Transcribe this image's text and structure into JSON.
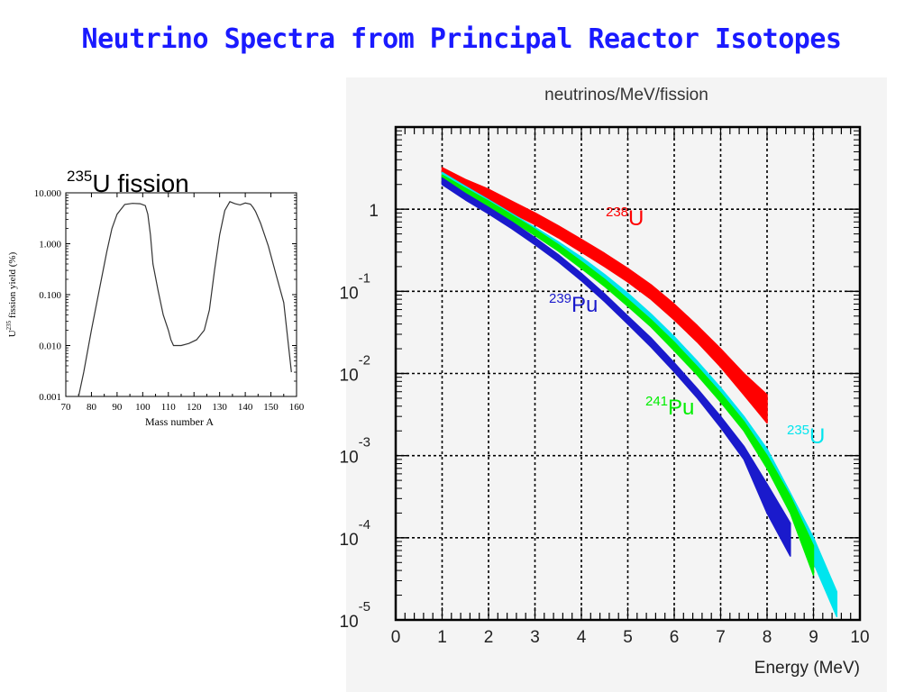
{
  "slide": {
    "title": "Neutrino Spectra from Principal Reactor Isotopes"
  },
  "chart_data": [
    {
      "type": "line",
      "title_prefix": "235",
      "title": "U fission",
      "xlabel": "Mass number A",
      "ylabel_prefix": "U",
      "ylabel_sup": "235",
      "ylabel": "fission yield (%)",
      "xlim": [
        70,
        160
      ],
      "ylim": [
        0.001,
        10
      ],
      "yscale": "log",
      "x_ticks": [
        "70",
        "80",
        "90",
        "100",
        "110",
        "120",
        "130",
        "140",
        "150",
        "160"
      ],
      "y_ticks": [
        "0.001",
        "0.010",
        "0.100",
        "1.000",
        "10.000"
      ],
      "series": [
        {
          "x": [
            75,
            77,
            80,
            83,
            86,
            88,
            90,
            93,
            96,
            99,
            101,
            102,
            103,
            104,
            106,
            108,
            110,
            111,
            112,
            115,
            118,
            121,
            124,
            126,
            128,
            130,
            132,
            134,
            136,
            138,
            140,
            142,
            143,
            144,
            146,
            149,
            152,
            155,
            158
          ],
          "y": [
            0.001,
            0.003,
            0.02,
            0.12,
            0.7,
            2.0,
            3.8,
            5.9,
            6.2,
            6.1,
            5.6,
            3.8,
            1.5,
            0.4,
            0.12,
            0.04,
            0.02,
            0.013,
            0.01,
            0.01,
            0.011,
            0.013,
            0.02,
            0.05,
            0.3,
            1.5,
            4.5,
            6.7,
            6.1,
            5.8,
            6.3,
            6.0,
            5.2,
            4.3,
            2.5,
            0.9,
            0.25,
            0.07,
            0.003
          ]
        }
      ]
    },
    {
      "type": "area",
      "title": "neutrinos/MeV/fission",
      "xlabel": "Energy (MeV)",
      "xlim": [
        0,
        10
      ],
      "ylim": [
        1e-05,
        10
      ],
      "yscale": "log",
      "grid": true,
      "x_ticks": [
        "0",
        "1",
        "2",
        "3",
        "4",
        "5",
        "6",
        "7",
        "8",
        "9",
        "10"
      ],
      "y_ticks": [
        {
          "base": "10",
          "exp": "-5"
        },
        {
          "base": "10",
          "exp": "-4"
        },
        {
          "base": "10",
          "exp": "-3"
        },
        {
          "base": "10",
          "exp": "-2"
        },
        {
          "base": "10",
          "exp": "-1"
        },
        {
          "base": "1",
          "exp": ""
        }
      ],
      "series": [
        {
          "name": "238U",
          "label_sup": "238",
          "label": "U",
          "color": "#ff0000",
          "x": [
            1,
            1.5,
            2,
            2.5,
            3,
            3.5,
            4,
            4.5,
            5,
            5.5,
            6,
            6.5,
            7,
            7.5,
            8
          ],
          "lower": [
            2.3,
            1.7,
            1.25,
            0.9,
            0.65,
            0.45,
            0.3,
            0.2,
            0.13,
            0.08,
            0.045,
            0.024,
            0.012,
            0.0055,
            0.0025
          ],
          "upper": [
            3.2,
            2.3,
            1.75,
            1.25,
            0.9,
            0.63,
            0.43,
            0.29,
            0.19,
            0.12,
            0.07,
            0.038,
            0.02,
            0.01,
            0.0055
          ]
        },
        {
          "name": "235U",
          "label_sup": "235",
          "label": "U",
          "color": "#00e5ee",
          "x": [
            1,
            1.5,
            2,
            2.5,
            3,
            3.5,
            4,
            4.5,
            5,
            5.5,
            6,
            6.5,
            7,
            7.5,
            8,
            8.5,
            9,
            9.5
          ],
          "lower": [
            2.4,
            1.6,
            1.1,
            0.75,
            0.52,
            0.34,
            0.22,
            0.13,
            0.076,
            0.042,
            0.022,
            0.011,
            0.005,
            0.0022,
            0.0008,
            0.00023,
            5e-05,
            1.1e-05
          ],
          "upper": [
            2.8,
            1.9,
            1.3,
            0.88,
            0.6,
            0.4,
            0.26,
            0.16,
            0.095,
            0.053,
            0.028,
            0.014,
            0.0067,
            0.003,
            0.0012,
            0.00035,
            0.0001,
            2.2e-05
          ]
        },
        {
          "name": "241Pu",
          "label_sup": "241",
          "label": "Pu",
          "color": "#00ee00",
          "x": [
            1,
            1.5,
            2,
            2.5,
            3,
            3.5,
            4,
            4.5,
            5,
            5.5,
            6,
            6.5,
            7,
            7.5,
            8,
            8.5,
            9
          ],
          "lower": [
            2.2,
            1.5,
            1.05,
            0.72,
            0.48,
            0.31,
            0.19,
            0.115,
            0.066,
            0.037,
            0.019,
            0.0095,
            0.0045,
            0.002,
            0.0007,
            0.0002,
            3.5e-05
          ],
          "upper": [
            2.6,
            1.8,
            1.25,
            0.85,
            0.57,
            0.37,
            0.23,
            0.14,
            0.08,
            0.045,
            0.024,
            0.012,
            0.0058,
            0.0026,
            0.001,
            0.00032,
            8e-05
          ]
        },
        {
          "name": "239Pu",
          "label_sup": "239",
          "label": "Pu",
          "color": "#1a1acc",
          "x": [
            1,
            1.5,
            2,
            2.5,
            3,
            3.5,
            4,
            4.5,
            5,
            5.5,
            6,
            6.5,
            7,
            7.5,
            8,
            8.5
          ],
          "lower": [
            2.0,
            1.3,
            0.88,
            0.58,
            0.37,
            0.23,
            0.135,
            0.075,
            0.04,
            0.021,
            0.0105,
            0.005,
            0.0022,
            0.0009,
            0.0002,
            6e-05
          ],
          "upper": [
            2.4,
            1.55,
            1.05,
            0.7,
            0.45,
            0.28,
            0.165,
            0.093,
            0.05,
            0.027,
            0.0135,
            0.0065,
            0.003,
            0.0013,
            0.00045,
            0.00015
          ]
        }
      ]
    }
  ]
}
